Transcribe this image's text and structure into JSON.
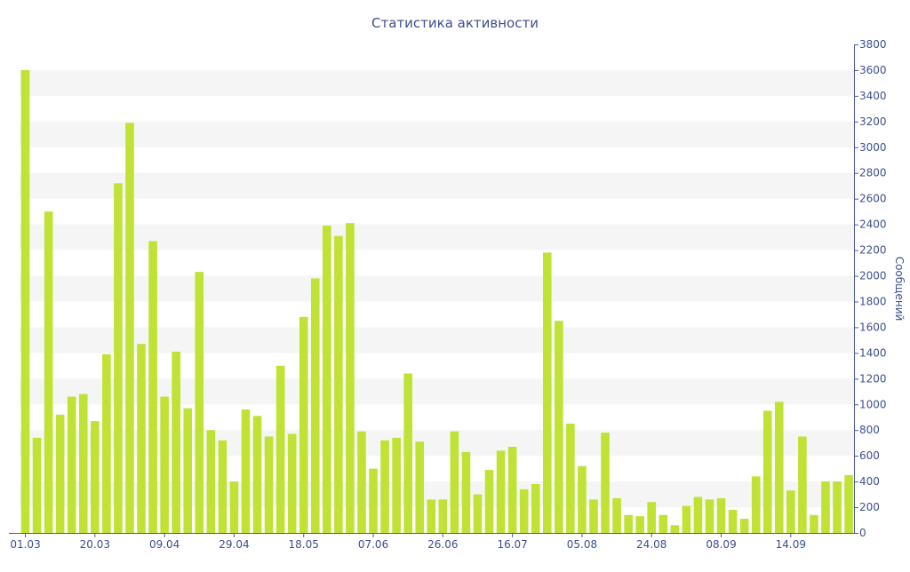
{
  "chart_data": {
    "type": "bar",
    "title": "Статистика активности",
    "xlabel": "",
    "ylabel": "Сообщений",
    "y_axis_side": "right",
    "ylim": [
      0,
      3800
    ],
    "y_ticks": [
      0,
      200,
      400,
      600,
      800,
      1000,
      1200,
      1400,
      1600,
      1800,
      2000,
      2200,
      2400,
      2600,
      2800,
      3000,
      3200,
      3400,
      3600,
      3800
    ],
    "x_tick_labels": [
      {
        "label": "01.03",
        "index": 0
      },
      {
        "label": "20.03",
        "index": 6
      },
      {
        "label": "09.04",
        "index": 12
      },
      {
        "label": "29.04",
        "index": 18
      },
      {
        "label": "18.05",
        "index": 24
      },
      {
        "label": "07.06",
        "index": 30
      },
      {
        "label": "26.06",
        "index": 36
      },
      {
        "label": "16.07",
        "index": 42
      },
      {
        "label": "05.08",
        "index": 48
      },
      {
        "label": "24.08",
        "index": 54
      },
      {
        "label": "08.09",
        "index": 60
      },
      {
        "label": "14.09",
        "index": 66
      }
    ],
    "grid": "alternating horizontal bands",
    "colors": {
      "bar": "#bfe235",
      "text": "#3d4f8f",
      "axis": "#4a5a99",
      "band": "#f5f5f5"
    },
    "values": [
      3600,
      740,
      2500,
      920,
      1060,
      1080,
      870,
      1390,
      2720,
      3190,
      1470,
      2270,
      1060,
      1410,
      970,
      2030,
      800,
      720,
      400,
      960,
      910,
      750,
      1300,
      770,
      1680,
      1980,
      2390,
      2310,
      2410,
      790,
      500,
      720,
      740,
      1240,
      710,
      260,
      260,
      790,
      630,
      300,
      490,
      640,
      670,
      340,
      380,
      2180,
      1650,
      850,
      520,
      260,
      780,
      270,
      140,
      130,
      240,
      140,
      60,
      210,
      280,
      260,
      270,
      180,
      110,
      440,
      950,
      1020,
      330,
      750,
      140,
      400,
      400,
      450
    ]
  }
}
